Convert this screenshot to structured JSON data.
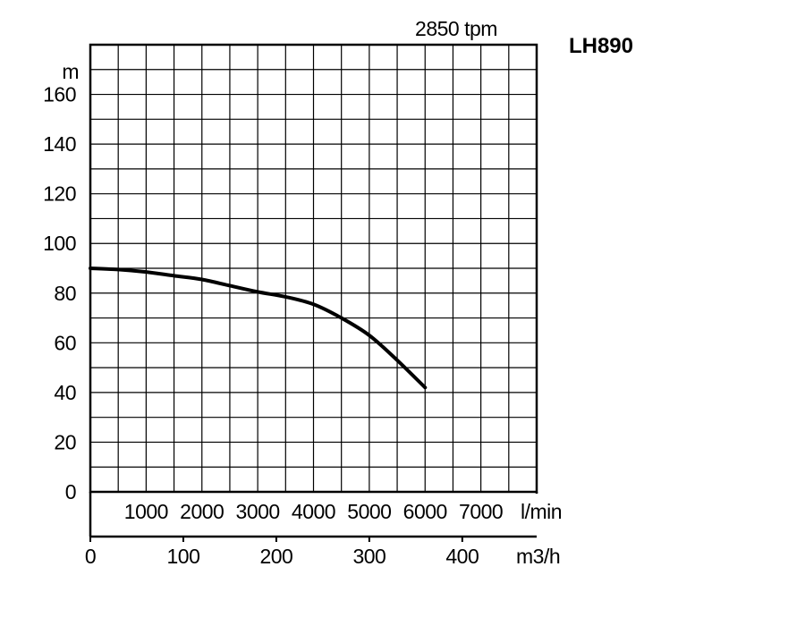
{
  "chart_data": {
    "type": "line",
    "title": "LH890",
    "subtitle": "2850 tpm",
    "ylabel": "m",
    "ylim": [
      0,
      180
    ],
    "yticks": [
      0,
      20,
      40,
      60,
      80,
      100,
      120,
      140,
      160
    ],
    "ytick_labels": [
      "0",
      "20",
      "40",
      "60",
      "80",
      "100",
      "120",
      "140",
      "160"
    ],
    "xlim_lmin": [
      0,
      8000
    ],
    "x_lmin_ticks": [
      1000,
      2000,
      3000,
      4000,
      5000,
      6000,
      7000
    ],
    "x_lmin_labels": [
      "1000",
      "2000",
      "3000",
      "4000",
      "5000",
      "6000",
      "7000"
    ],
    "x_lmin_unit": "l/min",
    "x_m3h_ticks": [
      0,
      100,
      200,
      300,
      400
    ],
    "x_m3h_labels": [
      "0",
      "100",
      "200",
      "300",
      "400"
    ],
    "x_m3h_unit": "m3/h",
    "grid": true,
    "series": [
      {
        "x": [
          0,
          500,
          1000,
          1500,
          2000,
          2500,
          3000,
          3500,
          4000,
          4500,
          5000,
          5500,
          6000
        ],
        "values": [
          90,
          89.5,
          88.5,
          87,
          85.5,
          83,
          80.5,
          78.5,
          75.5,
          70,
          63,
          53,
          42
        ]
      }
    ]
  }
}
